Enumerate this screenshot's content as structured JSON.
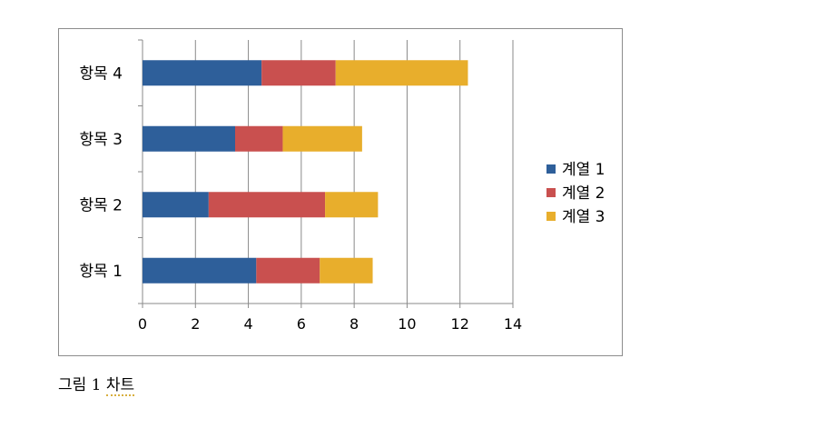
{
  "chart_data": {
    "type": "bar",
    "orientation": "horizontal",
    "stacked": true,
    "categories": [
      "항목 1",
      "항목 2",
      "항목 3",
      "항목 4"
    ],
    "series": [
      {
        "name": "계열 1",
        "color": "#2e5f9a",
        "values": [
          4.3,
          2.5,
          3.5,
          4.5
        ]
      },
      {
        "name": "계열 2",
        "color": "#c9504f",
        "values": [
          2.4,
          4.4,
          1.8,
          2.8
        ]
      },
      {
        "name": "계열 3",
        "color": "#e8ae2c",
        "values": [
          2.0,
          2.0,
          3.0,
          5.0
        ]
      }
    ],
    "xlim": [
      0,
      14
    ],
    "xticks": [
      "0",
      "2",
      "4",
      "6",
      "8",
      "10",
      "12",
      "14"
    ],
    "grid": "vertical",
    "legend_position": "right"
  },
  "caption": {
    "prefix": "그림 1",
    "word": "차트"
  }
}
